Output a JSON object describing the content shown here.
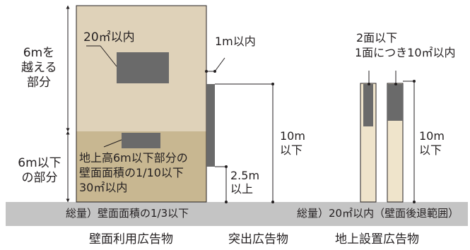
{
  "wall": {
    "upper_zone_label": [
      "6mを",
      "越える",
      "部分"
    ],
    "upper_limit": "20㎡以内",
    "lower_zone_label": [
      "6m以下",
      "の部分"
    ],
    "lower_limit": [
      "地上高6m以下部分の",
      "壁面面積の1/10以下",
      "30㎡以内"
    ],
    "total": "総量）壁面面積の1/3以下",
    "caption": "壁面利用広告物"
  },
  "projecting": {
    "projection_limit": "1m以内",
    "clearance": [
      "2.5m",
      "以上"
    ],
    "height": [
      "10m",
      "以下"
    ],
    "caption": "突出広告物"
  },
  "ground": {
    "face_limit": [
      "2面以下",
      "1面につき10㎡以内"
    ],
    "height": [
      "10m",
      "以下"
    ],
    "total": "総量）20㎡以内（壁面後退範囲）",
    "caption": "地上設置広告物"
  },
  "colors": {
    "wall_upper": "#dfd2b9",
    "wall_lower": "#c8b791",
    "sign": "#6a6a6a",
    "ground": "#c4c4c4",
    "post": "#efe4cb",
    "line": "#231f20"
  }
}
